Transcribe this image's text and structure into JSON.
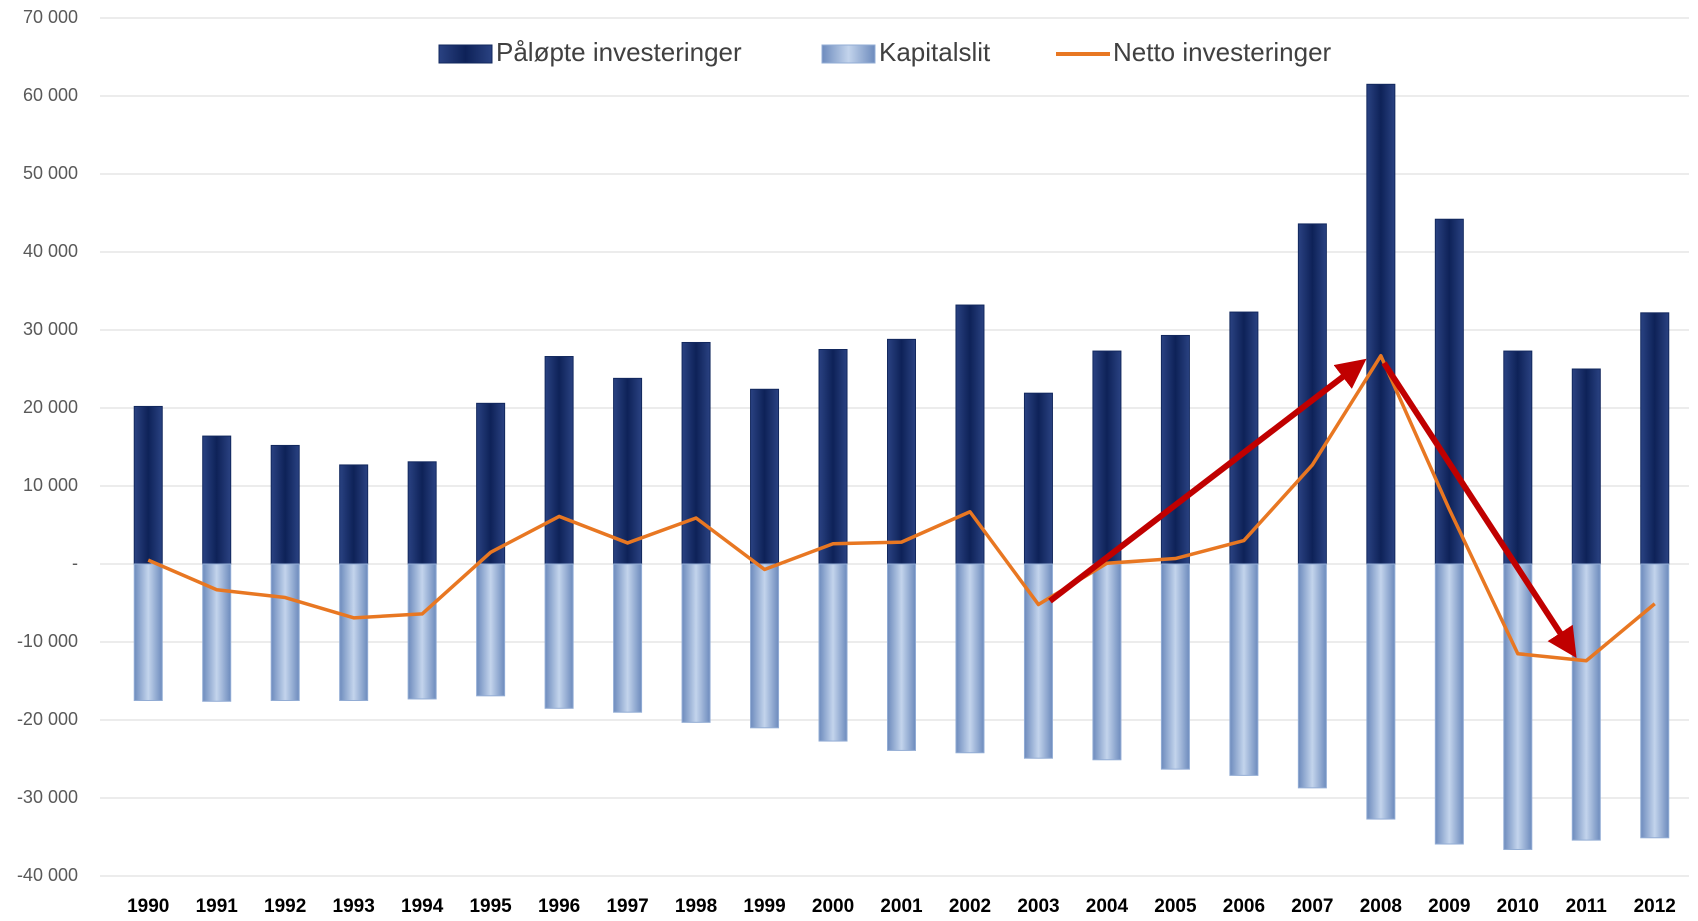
{
  "chart_data": {
    "type": "bar",
    "categories": [
      "1990",
      "1991",
      "1992",
      "1993",
      "1994",
      "1995",
      "1996",
      "1997",
      "1998",
      "1999",
      "2000",
      "2001",
      "2002",
      "2003",
      "2004",
      "2005",
      "2006",
      "2007",
      "2008",
      "2009",
      "2010",
      "2011",
      "2012"
    ],
    "series": [
      {
        "name": "Påløpte investeringer",
        "type": "bar",
        "color": "#12285e",
        "values": [
          20200,
          16400,
          15200,
          12700,
          13100,
          20600,
          26600,
          23800,
          28400,
          22400,
          27500,
          28800,
          33200,
          21900,
          27300,
          29300,
          32300,
          43600,
          61500,
          44200,
          27300,
          25000,
          32200
        ]
      },
      {
        "name": "Kapitalslit",
        "type": "bar",
        "color": "#92acd4",
        "values": [
          -17500,
          -17600,
          -17500,
          -17500,
          -17300,
          -16900,
          -18500,
          -19000,
          -20300,
          -21000,
          -22700,
          -23900,
          -24200,
          -24900,
          -25100,
          -26300,
          -27100,
          -28700,
          -32700,
          -35900,
          -36600,
          -35400,
          -35100
        ]
      },
      {
        "name": "Netto investeringer",
        "type": "line",
        "color": "#e87722",
        "values": [
          500,
          -3300,
          -4300,
          -6900,
          -6400,
          1500,
          6100,
          2700,
          5900,
          -700,
          2600,
          2800,
          6700,
          -5200,
          100,
          700,
          3000,
          12700,
          26700,
          7000,
          -11500,
          -12400,
          -5100
        ]
      }
    ],
    "ylim": [
      -40000,
      70000
    ],
    "yticks": [
      {
        "value": -40000,
        "label": "-40 000"
      },
      {
        "value": -30000,
        "label": "-30 000"
      },
      {
        "value": -20000,
        "label": "-20 000"
      },
      {
        "value": -10000,
        "label": "-10 000"
      },
      {
        "value": 0,
        "label": "-"
      },
      {
        "value": 10000,
        "label": "10 000"
      },
      {
        "value": 20000,
        "label": "20 000"
      },
      {
        "value": 30000,
        "label": "30 000"
      },
      {
        "value": 40000,
        "label": "40 000"
      },
      {
        "value": 50000,
        "label": "50 000"
      },
      {
        "value": 60000,
        "label": "60 000"
      },
      {
        "value": 70000,
        "label": "70 000"
      }
    ],
    "grid": true,
    "legend": "top"
  }
}
